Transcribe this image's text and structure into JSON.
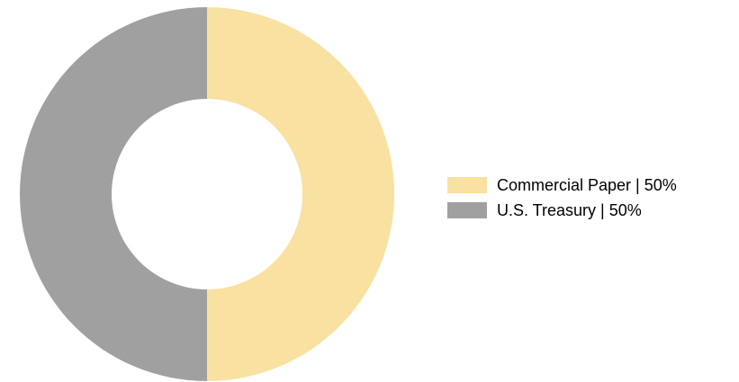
{
  "chart_data": {
    "type": "donut",
    "categories": [
      "Commercial Paper | 50%",
      "U.S. Treasury | 50%"
    ],
    "values": [
      50,
      50
    ],
    "colors": [
      "#f8e1a1",
      "#a0a0a0"
    ],
    "legend": "right"
  }
}
